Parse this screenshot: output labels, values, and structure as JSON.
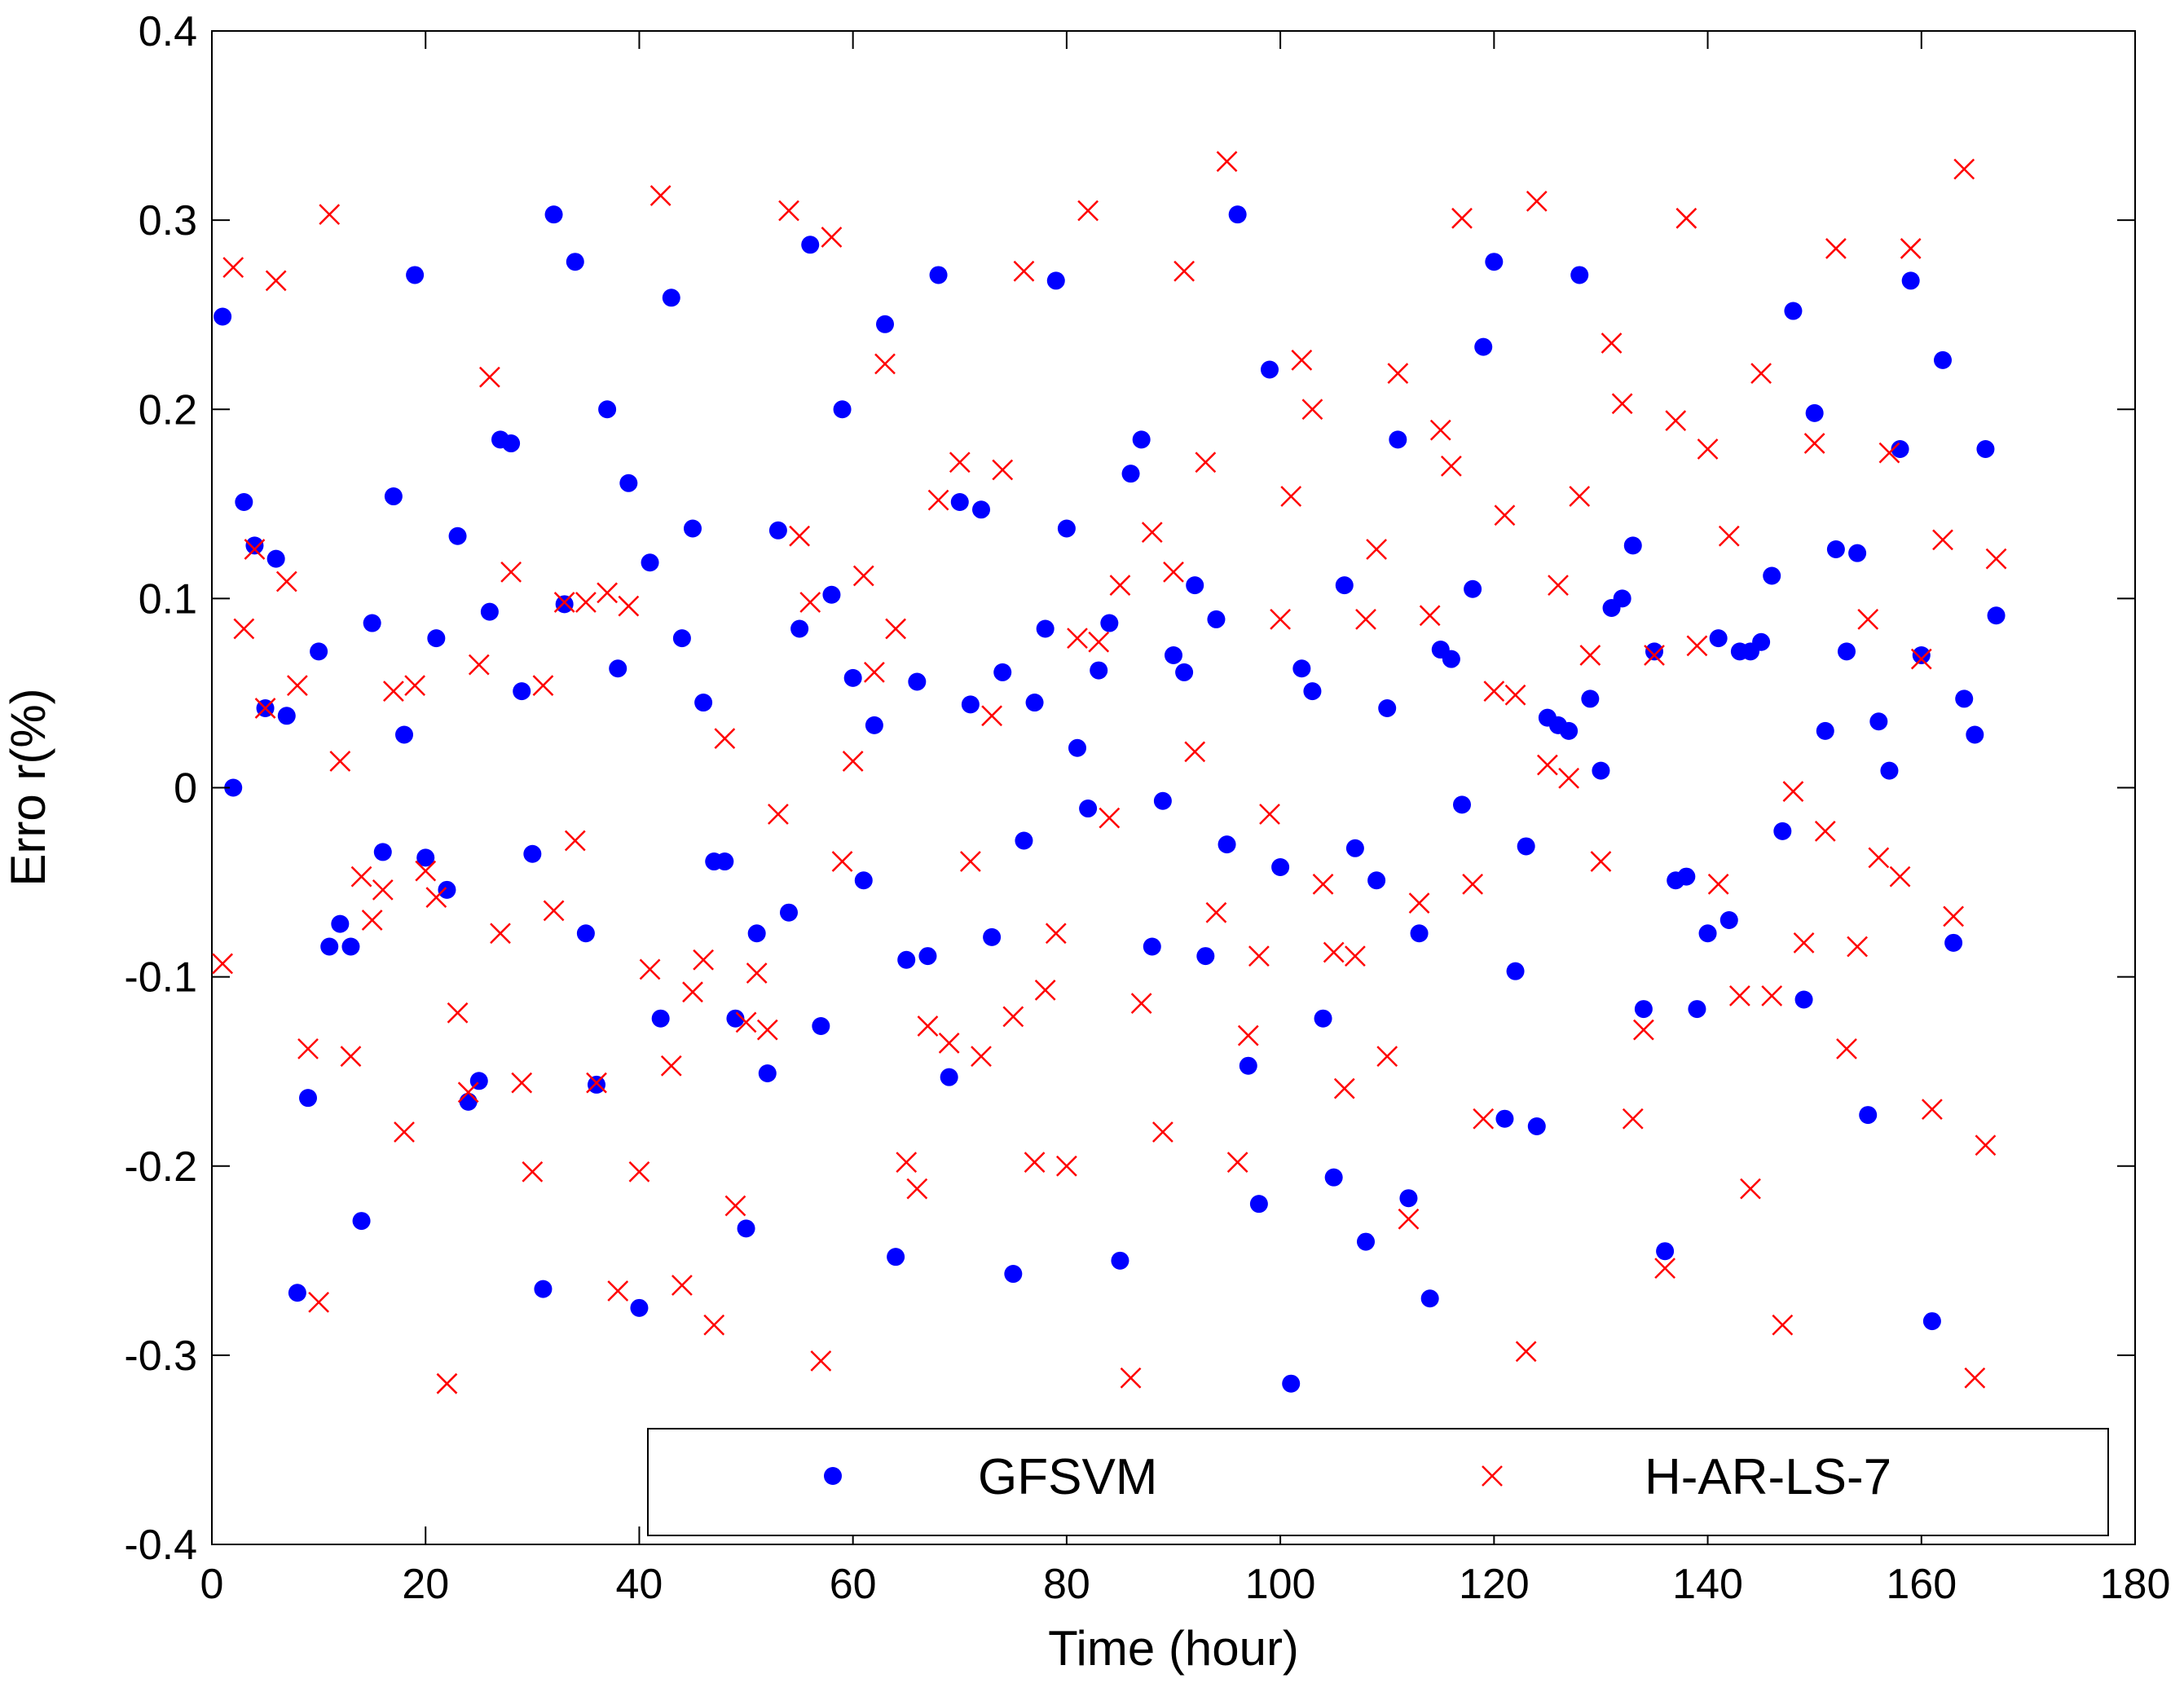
{
  "chart_data": {
    "type": "scatter",
    "title": "",
    "xlabel": "Time (hour)",
    "ylabel": "Erro r(%)",
    "xlim": [
      0,
      180
    ],
    "ylim": [
      -0.4,
      0.4
    ],
    "xticks": [
      "0",
      "20",
      "40",
      "60",
      "80",
      "100",
      "120",
      "140",
      "160",
      "180"
    ],
    "yticks": [
      "-0.4",
      "-0.3",
      "-0.2",
      "-0.1",
      "0",
      "0.1",
      "0.2",
      "0.3",
      "0.4"
    ],
    "grid": false,
    "legend_position": "bottom-right",
    "series": [
      {
        "name": "GFSVM",
        "marker": "filled-circle",
        "color": "#0000ff",
        "x": [
          1,
          2,
          3,
          4,
          5,
          6,
          7,
          8,
          9,
          10,
          11,
          12,
          13,
          14,
          15,
          16,
          17,
          18,
          19,
          20,
          21,
          22,
          23,
          24,
          25,
          26,
          27,
          28,
          29,
          30,
          31,
          32,
          33,
          34,
          35,
          36,
          37,
          38,
          39,
          40,
          41,
          42,
          43,
          44,
          45,
          46,
          47,
          48,
          49,
          50,
          51,
          52,
          53,
          54,
          55,
          56,
          57,
          58,
          59,
          60,
          61,
          62,
          63,
          64,
          65,
          66,
          67,
          68,
          69,
          70,
          71,
          72,
          73,
          74,
          75,
          76,
          77,
          78,
          79,
          80,
          81,
          82,
          83,
          84,
          85,
          86,
          87,
          88,
          89,
          90,
          91,
          92,
          93,
          94,
          95,
          96,
          97,
          98,
          99,
          100,
          101,
          102,
          103,
          104,
          105,
          106,
          107,
          108,
          109,
          110,
          111,
          112,
          113,
          114,
          115,
          116,
          117,
          118,
          119,
          120,
          121,
          122,
          123,
          124,
          125,
          126,
          127,
          128,
          129,
          130,
          131,
          132,
          133,
          134,
          135,
          136,
          137,
          138,
          139,
          140,
          141,
          142,
          143,
          144,
          145,
          146,
          147,
          148,
          149,
          150,
          151,
          152,
          153,
          154,
          155,
          156,
          157,
          158,
          159,
          160,
          161,
          162,
          163,
          164,
          165,
          166,
          167
        ],
        "y": [
          0.249,
          0,
          0.151,
          0.128,
          0.042,
          0.121,
          0.038,
          -0.267,
          -0.164,
          0.072,
          -0.084,
          -0.072,
          -0.084,
          -0.229,
          0.087,
          -0.034,
          0.154,
          0.028,
          0.271,
          -0.037,
          0.079,
          -0.054,
          0.133,
          -0.166,
          -0.155,
          0.093,
          0.184,
          0.182,
          0.051,
          -0.035,
          -0.265,
          0.303,
          0.097,
          0.278,
          -0.077,
          -0.157,
          0.2,
          0.063,
          0.161,
          -0.275,
          0.119,
          -0.122,
          0.259,
          0.079,
          0.137,
          0.045,
          -0.039,
          -0.039,
          -0.122,
          -0.233,
          -0.077,
          -0.151,
          0.136,
          -0.066,
          0.084,
          0.287,
          -0.126,
          0.102,
          0.2,
          0.058,
          -0.049,
          0.033,
          0.245,
          -0.248,
          -0.091,
          0.056,
          -0.089,
          0.271,
          -0.153,
          0.151,
          0.044,
          0.147,
          -0.079,
          0.061,
          -0.257,
          -0.028,
          0.045,
          0.084,
          0.268,
          0.137,
          0.021,
          -0.011,
          0.062,
          0.087,
          -0.25,
          0.166,
          0.184,
          -0.084,
          -0.007,
          0.07,
          0.061,
          0.107,
          -0.089,
          0.089,
          -0.03,
          0.303,
          -0.147,
          -0.22,
          0.221,
          -0.042,
          -0.315,
          0.063,
          0.051,
          -0.122,
          -0.206,
          0.107,
          -0.032,
          -0.24,
          -0.049,
          0.042,
          0.184,
          -0.217,
          -0.077,
          -0.27,
          0.073,
          0.068,
          -0.009,
          0.105,
          0.233,
          0.278,
          -0.175,
          -0.097,
          -0.031,
          -0.179,
          0.037,
          0.033,
          0.03,
          0.271,
          0.047,
          0.009,
          0.095,
          0.1,
          0.128,
          -0.117,
          0.072,
          -0.245,
          -0.049,
          -0.047,
          -0.117,
          -0.077,
          0.079,
          -0.07,
          0.072,
          0.072,
          0.077,
          0.112,
          -0.023,
          0.252,
          -0.112,
          0.198,
          0.03,
          0.126,
          0.072,
          0.124,
          -0.173,
          0.035,
          0.009,
          0.179,
          0.268,
          0.07,
          -0.282,
          0.226,
          -0.082,
          0.047,
          0.028,
          0.179,
          0.091
        ]
      },
      {
        "name": "H-AR-LS-7",
        "marker": "x",
        "color": "#ff0000",
        "x": [
          1,
          2,
          3,
          4,
          5,
          6,
          7,
          8,
          9,
          10,
          11,
          12,
          13,
          14,
          15,
          16,
          17,
          18,
          19,
          20,
          21,
          22,
          23,
          24,
          25,
          26,
          27,
          28,
          29,
          30,
          31,
          32,
          33,
          34,
          35,
          36,
          37,
          38,
          39,
          40,
          41,
          42,
          43,
          44,
          45,
          46,
          47,
          48,
          49,
          50,
          51,
          52,
          53,
          54,
          55,
          56,
          57,
          58,
          59,
          60,
          61,
          62,
          63,
          64,
          65,
          66,
          67,
          68,
          69,
          70,
          71,
          72,
          73,
          74,
          75,
          76,
          77,
          78,
          79,
          80,
          81,
          82,
          83,
          84,
          85,
          86,
          87,
          88,
          89,
          90,
          91,
          92,
          93,
          94,
          95,
          96,
          97,
          98,
          99,
          100,
          101,
          102,
          103,
          104,
          105,
          106,
          107,
          108,
          109,
          110,
          111,
          112,
          113,
          114,
          115,
          116,
          117,
          118,
          119,
          120,
          121,
          122,
          123,
          124,
          125,
          126,
          127,
          128,
          129,
          130,
          131,
          132,
          133,
          134,
          135,
          136,
          137,
          138,
          139,
          140,
          141,
          142,
          143,
          144,
          145,
          146,
          147,
          148,
          149,
          150,
          151,
          152,
          153,
          154,
          155,
          156,
          157,
          158,
          159,
          160,
          161,
          162,
          163,
          164,
          165,
          166,
          167
        ],
        "y": [
          -0.093,
          0.275,
          0.084,
          0.126,
          0.042,
          0.268,
          0.109,
          0.054,
          -0.138,
          -0.272,
          0.303,
          0.014,
          -0.142,
          -0.047,
          -0.07,
          -0.054,
          0.051,
          -0.182,
          0.054,
          -0.044,
          -0.058,
          -0.315,
          -0.119,
          -0.161,
          0.065,
          0.217,
          -0.077,
          0.114,
          -0.156,
          -0.203,
          0.054,
          -0.065,
          0.098,
          -0.028,
          0.098,
          -0.156,
          0.103,
          -0.266,
          0.096,
          -0.203,
          -0.096,
          0.313,
          -0.147,
          -0.263,
          -0.108,
          -0.091,
          -0.284,
          0.026,
          -0.221,
          -0.124,
          -0.098,
          -0.128,
          -0.014,
          0.305,
          0.133,
          0.098,
          -0.303,
          0.291,
          -0.039,
          0.014,
          0.112,
          0.061,
          0.224,
          0.084,
          -0.198,
          -0.212,
          -0.126,
          0.152,
          -0.135,
          0.172,
          -0.039,
          -0.142,
          0.038,
          0.168,
          -0.121,
          0.273,
          -0.198,
          -0.107,
          -0.077,
          -0.2,
          0.079,
          0.305,
          0.077,
          -0.016,
          0.107,
          -0.312,
          -0.114,
          0.135,
          -0.182,
          0.114,
          0.273,
          0.019,
          0.172,
          -0.066,
          0.331,
          -0.198,
          -0.131,
          -0.089,
          -0.014,
          0.089,
          0.154,
          0.226,
          0.2,
          -0.051,
          -0.087,
          -0.159,
          -0.089,
          0.089,
          0.126,
          -0.142,
          0.219,
          -0.228,
          -0.061,
          0.091,
          0.189,
          0.17,
          0.301,
          -0.051,
          -0.175,
          0.051,
          0.144,
          0.049,
          -0.298,
          0.31,
          0.012,
          0.107,
          0.005,
          0.154,
          0.07,
          -0.039,
          0.235,
          0.203,
          -0.175,
          -0.128,
          0.07,
          -0.254,
          0.194,
          0.301,
          0.075,
          0.179,
          -0.051,
          0.133,
          -0.11,
          -0.212,
          0.219,
          -0.11,
          -0.284,
          -0.002,
          -0.082,
          0.182,
          -0.023,
          0.285,
          -0.138,
          -0.084,
          0.089,
          -0.037,
          0.177,
          -0.047,
          0.285,
          0.068,
          -0.17,
          0.131,
          -0.068,
          0.327,
          -0.312,
          -0.189,
          0.121
        ]
      }
    ]
  }
}
